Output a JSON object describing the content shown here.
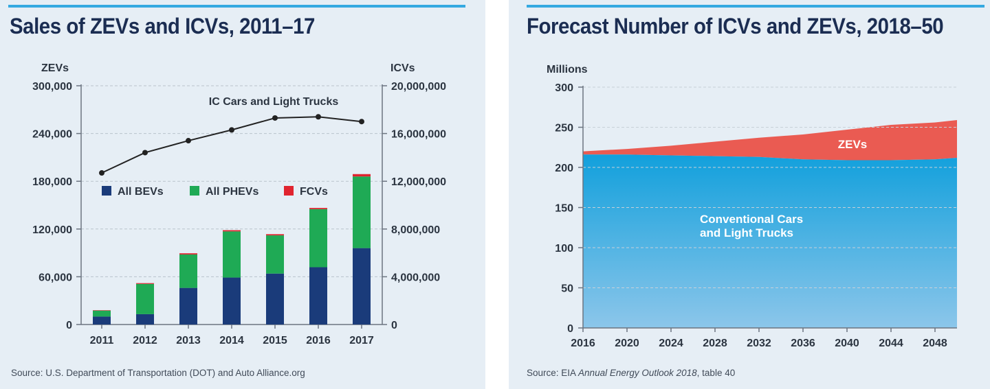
{
  "colors": {
    "background": "#e6eef5",
    "accent_bar": "#35a9e1",
    "title": "#1b2d52",
    "bev": "#1a3b7a",
    "phev": "#1faa55",
    "fcv": "#e0242f",
    "icv_line": "#222222",
    "conventional_top": "#12a0dc",
    "conventional_bottom": "#8cc6ea",
    "zev_area": "#ea5b52"
  },
  "left_panel": {
    "title": "Sales of ZEVs and ICVs, 2011–17",
    "source": "Source: U.S. Department of Transportation (DOT) and Auto Alliance.org"
  },
  "right_panel": {
    "title": "Forecast Number of ICVs and ZEVs, 2018–50",
    "source_prefix": "Source: EIA ",
    "source_italic": "Annual Energy Outlook 2018",
    "source_suffix": ", table 40"
  },
  "chart_data": [
    {
      "type": "bar",
      "stacked": true,
      "title": "Sales of ZEVs and ICVs, 2011–17",
      "categories": [
        "2011",
        "2012",
        "2013",
        "2014",
        "2015",
        "2016",
        "2017"
      ],
      "ylabel": "ZEVs",
      "ylim": [
        0,
        300000
      ],
      "yticks": [
        0,
        60000,
        120000,
        180000,
        240000,
        300000
      ],
      "ytick_labels": [
        "0",
        "60,000",
        "120,000",
        "180,000",
        "240,000",
        "300,000"
      ],
      "series": [
        {
          "name": "All BEVs",
          "values": [
            10000,
            13000,
            46000,
            59000,
            64000,
            72000,
            96000
          ]
        },
        {
          "name": "All PHEVs",
          "values": [
            7500,
            38000,
            42000,
            58000,
            48000,
            73000,
            90000
          ]
        },
        {
          "name": "FCVs",
          "values": [
            500,
            1000,
            1500,
            1500,
            1500,
            1500,
            3000
          ]
        }
      ],
      "legend": [
        "All BEVs",
        "All PHEVs",
        "FCVs"
      ],
      "legend_position": "middle",
      "secondary_axis": {
        "label": "ICVs",
        "ylim": [
          0,
          20000000
        ],
        "yticks": [
          0,
          4000000,
          8000000,
          12000000,
          16000000,
          20000000
        ],
        "ytick_labels": [
          "0",
          "4,000,000",
          "8,000,000",
          "12,000,000",
          "16,000,000",
          "20,000,000"
        ]
      },
      "line_series": {
        "name": "IC Cars and Light Trucks",
        "values": [
          12700000,
          14400000,
          15400000,
          16300000,
          17300000,
          17400000,
          17000000
        ]
      },
      "grid": true
    },
    {
      "type": "area",
      "stacked": true,
      "title": "Forecast Number of ICVs and ZEVs, 2018–50",
      "ylabel": "Millions",
      "ylim": [
        0,
        300
      ],
      "yticks": [
        0,
        50,
        100,
        150,
        200,
        250,
        300
      ],
      "xlim": [
        2016,
        2050
      ],
      "xticks": [
        2016,
        2020,
        2024,
        2028,
        2032,
        2036,
        2040,
        2044,
        2048
      ],
      "x": [
        2016,
        2020,
        2024,
        2028,
        2032,
        2036,
        2040,
        2044,
        2048,
        2050
      ],
      "series": [
        {
          "name": "Conventional Cars and Light Trucks",
          "label_lines": [
            "Conventional Cars",
            "and Light Trucks"
          ],
          "values": [
            216,
            216,
            215,
            214,
            213,
            210,
            209,
            209,
            210,
            212
          ]
        },
        {
          "name": "ZEVs",
          "values": [
            4,
            7,
            12,
            18,
            24,
            31,
            38,
            44,
            46,
            47
          ]
        }
      ],
      "grid": true
    }
  ]
}
